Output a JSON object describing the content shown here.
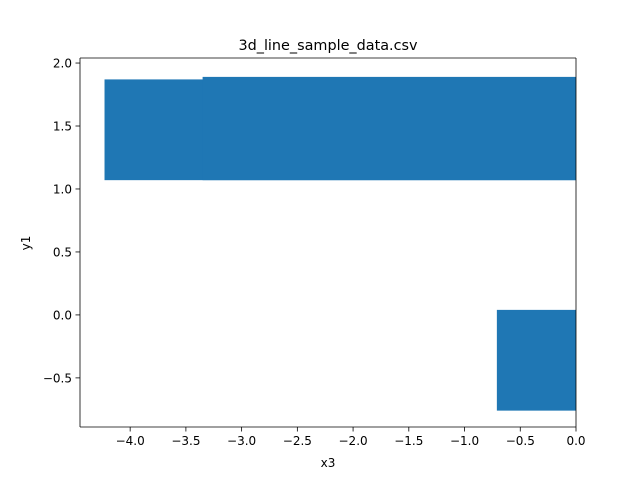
{
  "chart_data": {
    "type": "bar",
    "orientation": "horizontal",
    "title": "3d_line_sample_data.csv",
    "xlabel": "x3",
    "ylabel": "y1",
    "xlim": [
      -4.45,
      0.0
    ],
    "ylim": [
      -0.89,
      2.04
    ],
    "xticks": [
      -4.0,
      -3.5,
      -3.0,
      -2.5,
      -2.0,
      -1.5,
      -1.0,
      -0.5,
      0.0
    ],
    "xtick_labels": [
      "−4.0",
      "−3.5",
      "−3.0",
      "−2.5",
      "−2.0",
      "−1.5",
      "−1.0",
      "−0.5",
      "0.0"
    ],
    "yticks": [
      -0.5,
      0.0,
      0.5,
      1.0,
      1.5,
      2.0
    ],
    "ytick_labels": [
      "−0.5",
      "0.0",
      "0.5",
      "1.0",
      "1.5",
      "2.0"
    ],
    "grid": false,
    "color": "#1f77b4",
    "bars": [
      {
        "y": 1.47,
        "height": 0.8,
        "value": -4.23
      },
      {
        "y": 1.48,
        "height": 0.82,
        "value": -3.35
      },
      {
        "y": -0.36,
        "height": 0.8,
        "value": -0.71
      }
    ]
  }
}
